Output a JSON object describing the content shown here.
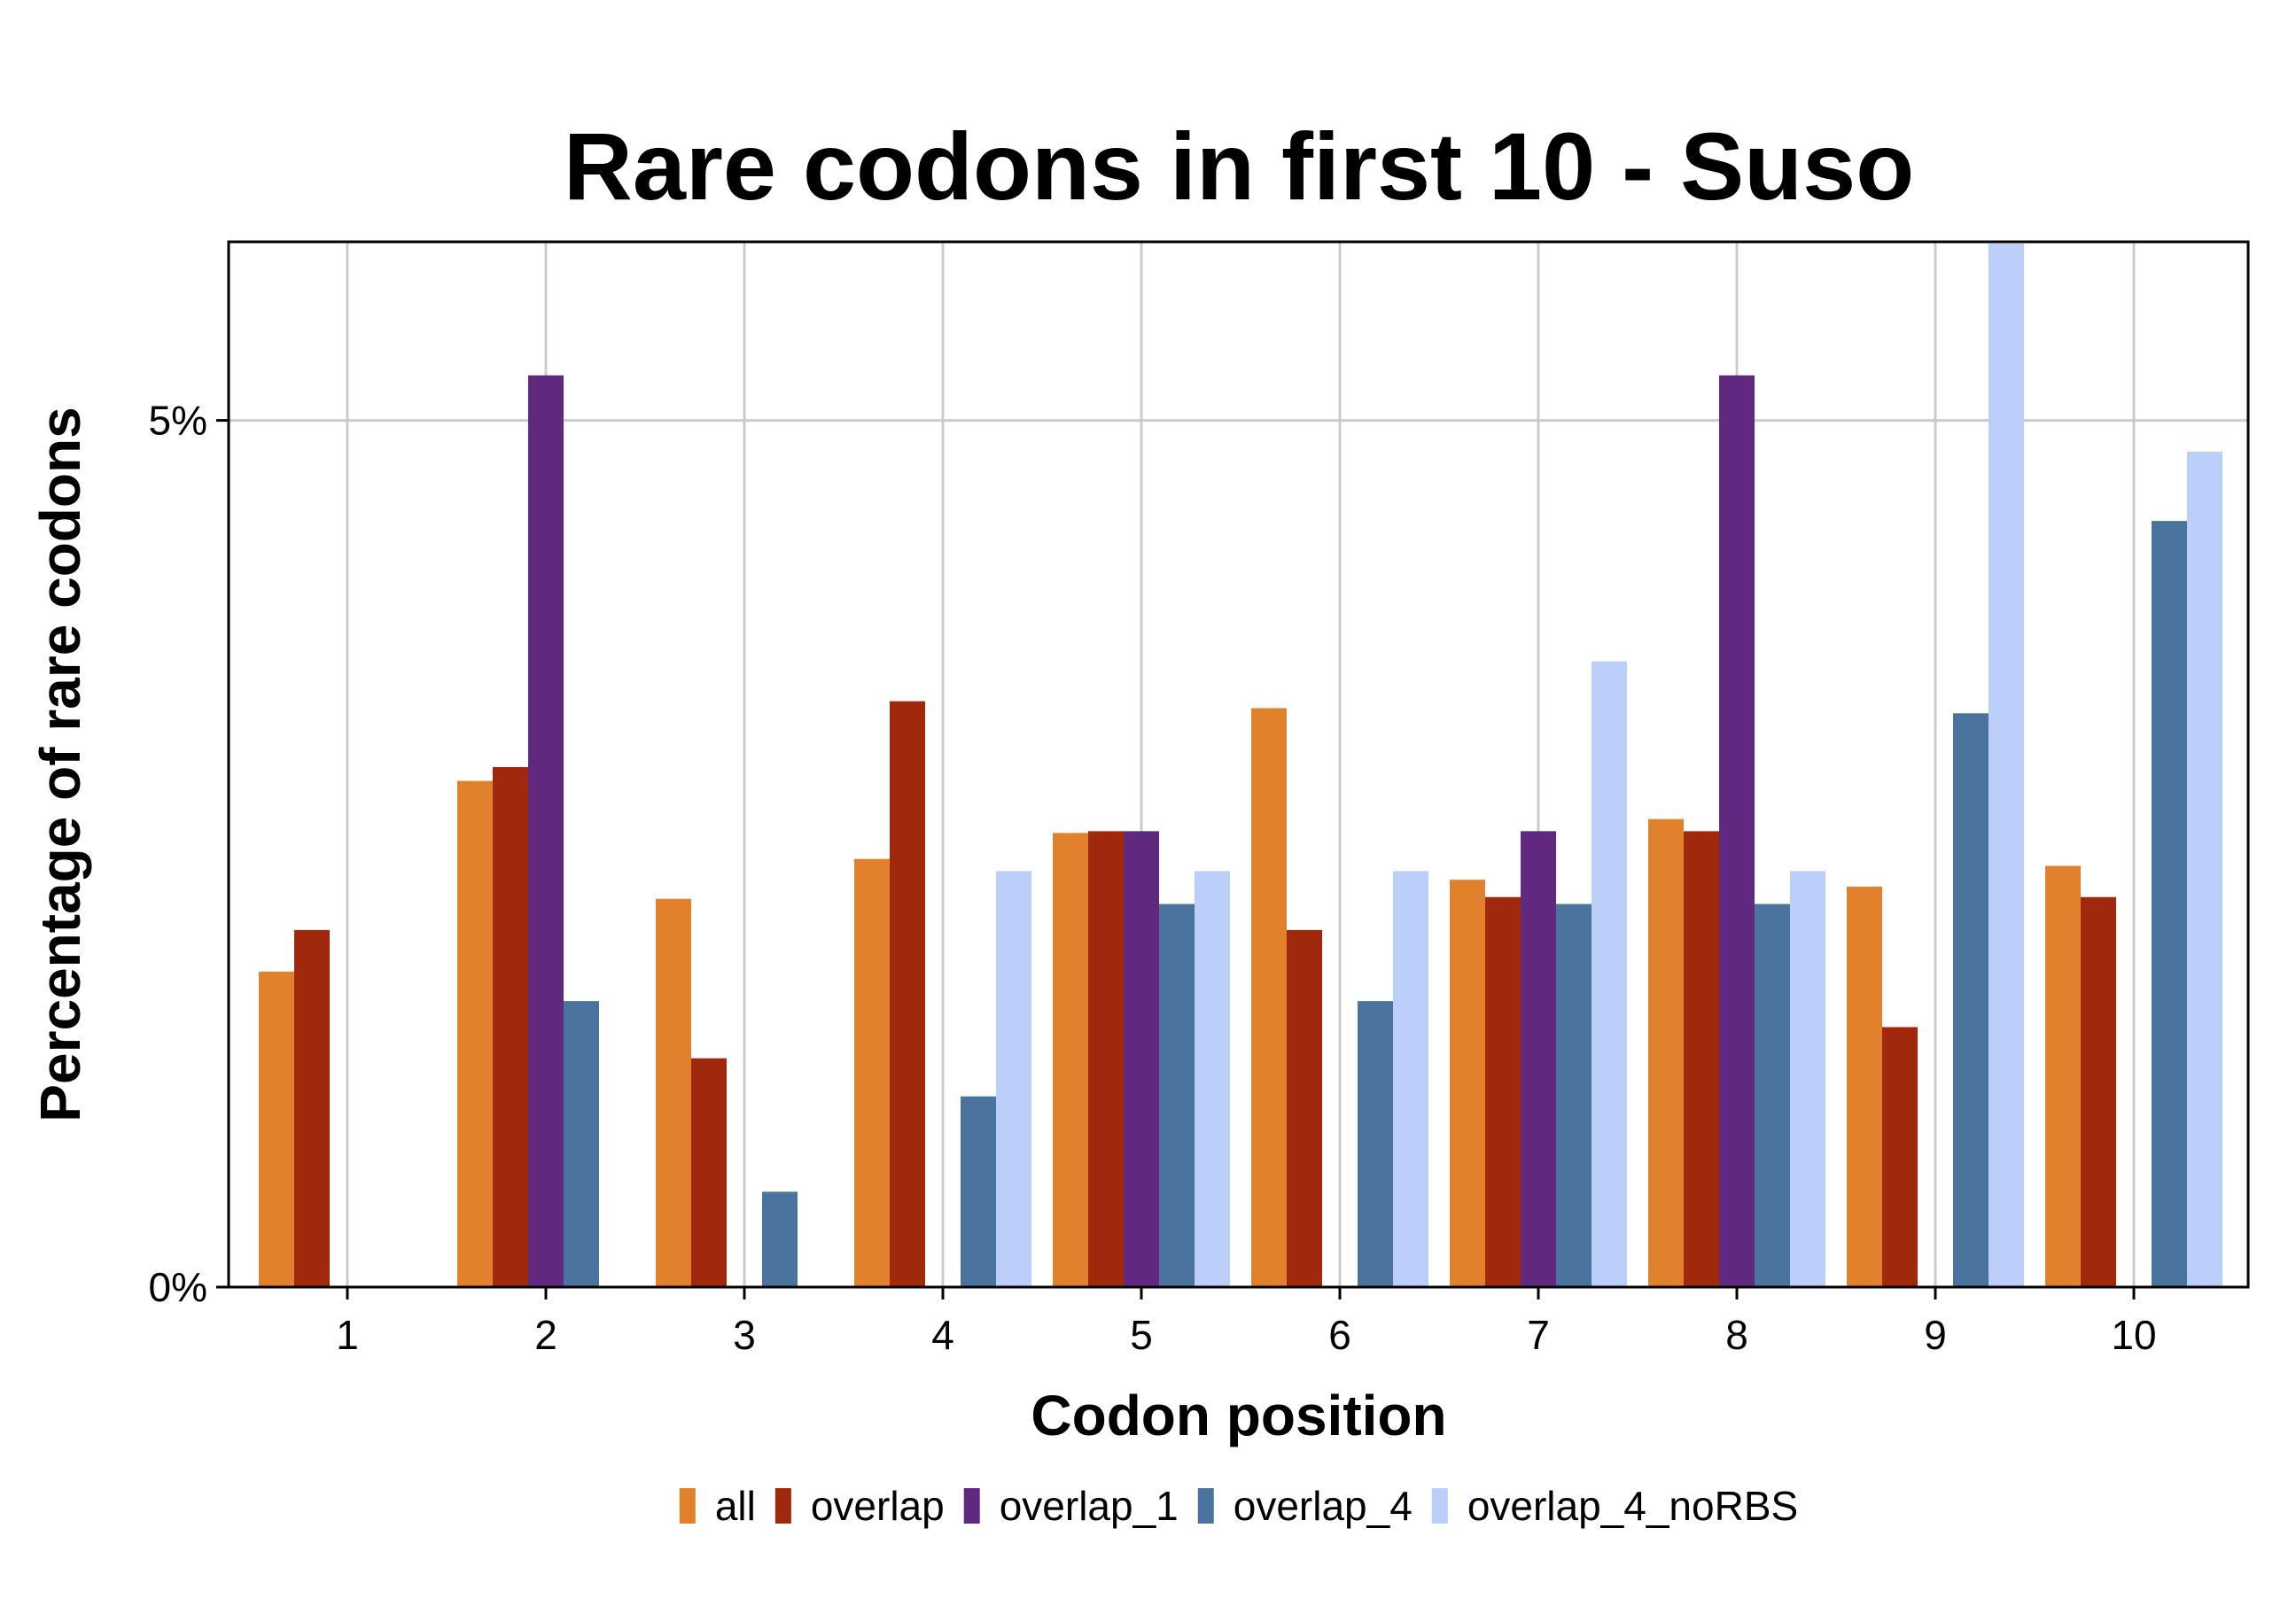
{
  "chart_data": {
    "type": "bar",
    "title": "Rare codons in first 10 - Suso",
    "xlabel": "Codon position",
    "ylabel": "Percentage of rare codons",
    "categories": [
      "1",
      "2",
      "3",
      "4",
      "5",
      "6",
      "7",
      "8",
      "9",
      "10"
    ],
    "y_ticks": [
      {
        "value": 0,
        "label": "0%"
      },
      {
        "value": 5,
        "label": "5%"
      }
    ],
    "ylim": [
      0,
      6.02
    ],
    "grid": true,
    "legend_position": "bottom",
    "series": [
      {
        "name": "all",
        "color": "#E2812C",
        "values": [
          1.82,
          2.92,
          2.24,
          2.47,
          2.62,
          3.34,
          2.35,
          2.7,
          2.31,
          2.43
        ]
      },
      {
        "name": "overlap",
        "color": "#A0290D",
        "values": [
          2.06,
          3.0,
          1.32,
          3.38,
          2.63,
          2.06,
          2.25,
          2.63,
          1.5,
          2.25
        ]
      },
      {
        "name": "overlap_1",
        "color": "#612880",
        "values": [
          0,
          5.26,
          0,
          0,
          2.63,
          0,
          2.63,
          5.26,
          0,
          0
        ]
      },
      {
        "name": "overlap_4",
        "color": "#4A749E",
        "values": [
          0,
          1.65,
          0.55,
          1.1,
          2.21,
          1.65,
          2.21,
          2.21,
          3.31,
          4.42
        ]
      },
      {
        "name": "overlap_4_noRBS",
        "color": "#BBCFF8",
        "values": [
          0,
          0,
          0,
          2.4,
          2.4,
          2.4,
          3.61,
          2.4,
          6.02,
          4.82
        ]
      }
    ]
  }
}
